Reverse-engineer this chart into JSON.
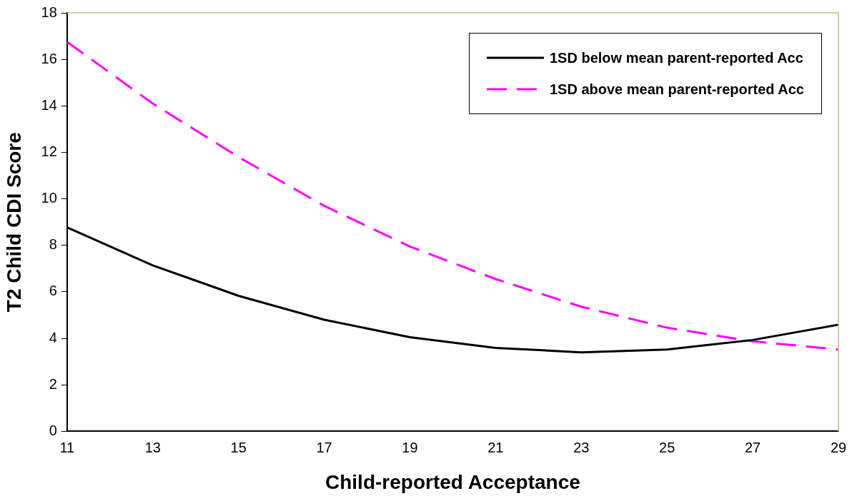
{
  "chart_data": {
    "type": "line",
    "xlabel": "Child-reported Acceptance",
    "ylabel": "T2 Child CDI Score",
    "x": [
      11,
      13,
      15,
      17,
      19,
      21,
      23,
      25,
      27,
      29
    ],
    "series": [
      {
        "name": "1SD below mean parent-reported Acc",
        "color": "#000000",
        "line_style": "solid",
        "values": [
          8.77,
          7.14,
          5.83,
          4.8,
          4.05,
          3.59,
          3.4,
          3.52,
          3.93,
          4.59
        ]
      },
      {
        "name": "1SD above mean parent-reported Acc",
        "color": "#ff00ff",
        "line_style": "dashed",
        "values": [
          16.75,
          14.1,
          11.8,
          9.7,
          7.95,
          6.55,
          5.36,
          4.46,
          3.87,
          3.52
        ]
      }
    ],
    "xlim": [
      11,
      29
    ],
    "xticks": [
      11,
      13,
      15,
      17,
      19,
      21,
      23,
      25,
      27,
      29
    ],
    "ylim": [
      0,
      18
    ],
    "yticks": [
      0,
      2,
      4,
      6,
      8,
      10,
      12,
      14,
      16,
      18
    ],
    "grid": false,
    "legend": "top right",
    "marker": "none"
  }
}
